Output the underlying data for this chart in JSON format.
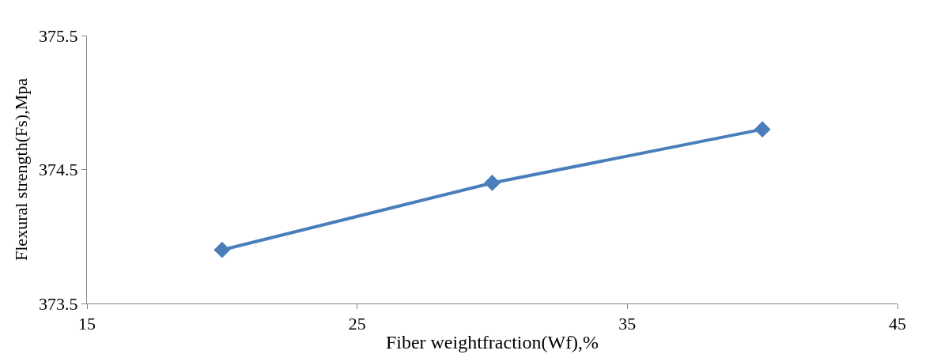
{
  "chart_data": {
    "type": "line",
    "xlabel": "Fiber weightfraction(Wf),%",
    "ylabel": "Flexural strength(Fs),Mpa",
    "x": [
      20,
      30,
      40
    ],
    "series": [
      {
        "color": "#4a7ebb",
        "values": [
          373.9,
          374.4,
          374.8
        ]
      }
    ],
    "xlim": [
      15,
      45
    ],
    "xticks": [
      15,
      25,
      35,
      45
    ],
    "ylim": [
      373.5,
      375.5
    ],
    "yticks": [
      373.5,
      374.5,
      375.5
    ],
    "marker": "diamond",
    "line_style": "solid"
  }
}
